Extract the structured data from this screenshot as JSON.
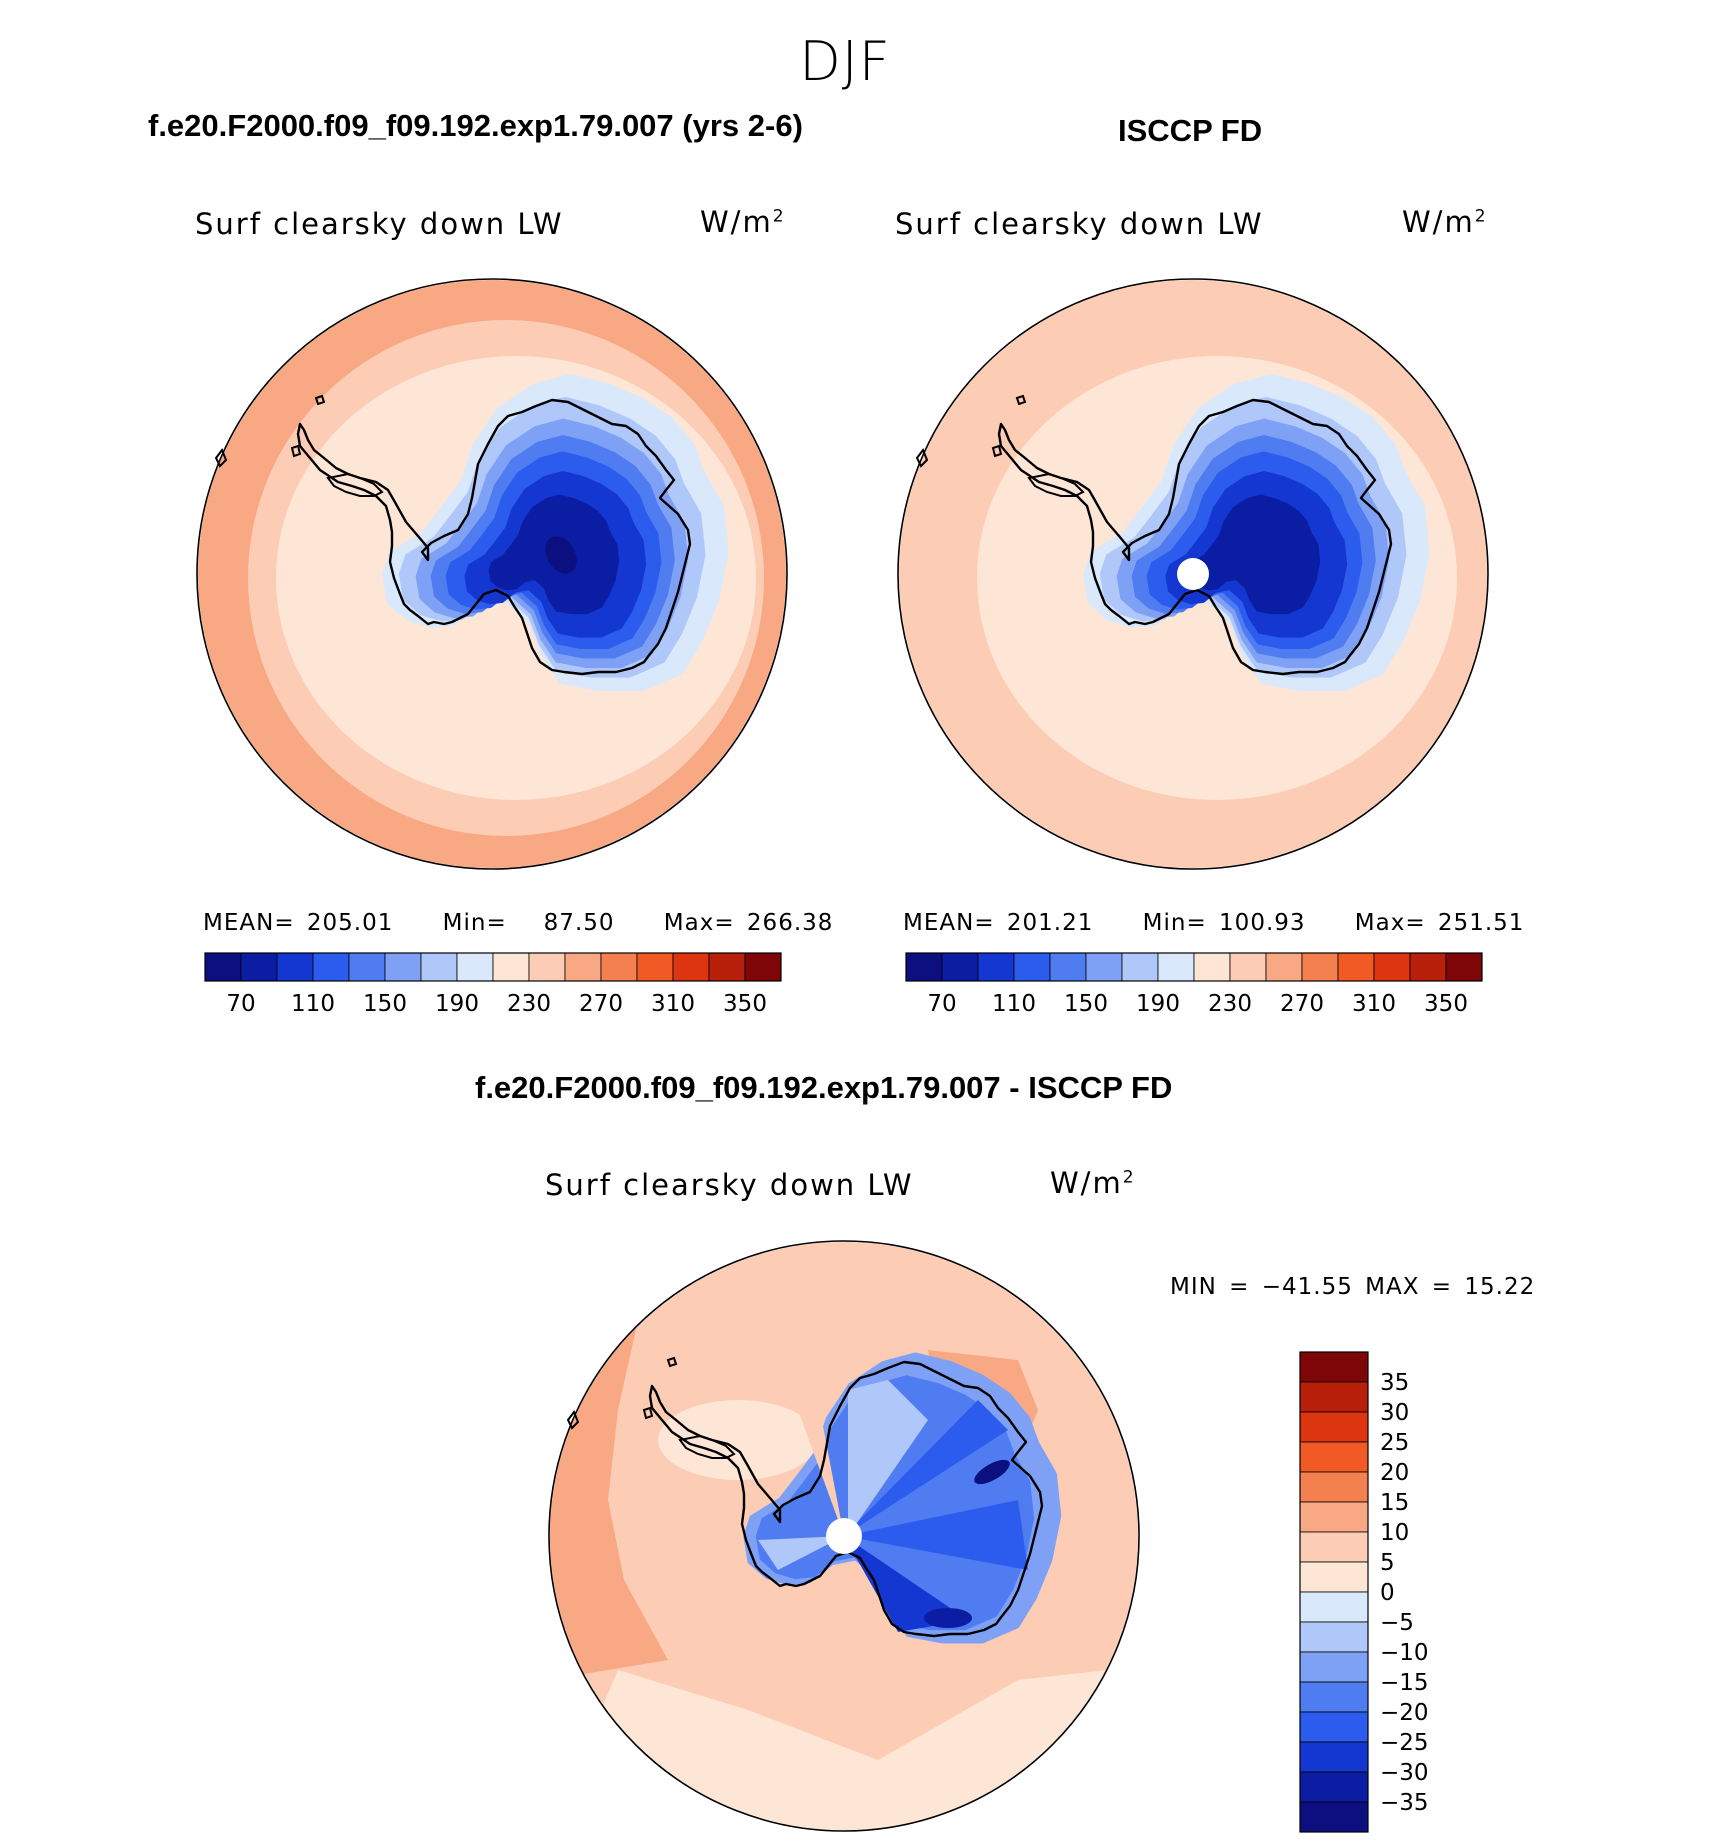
{
  "figure": {
    "season": "DJF",
    "units": "W/m",
    "units_exp": "2",
    "field_label": "Surf clearsky down LW"
  },
  "panels": {
    "model": {
      "title": "f.e20.F2000.f09_f09.192.exp1.79.007 (yrs 2-6)",
      "mean_label": "MEAN=",
      "mean": "205.01",
      "min_label": "Min=",
      "min": "87.50",
      "max_label": "Max=",
      "max": "266.38"
    },
    "obs": {
      "title": "ISCCP FD",
      "mean_label": "MEAN=",
      "mean": "201.21",
      "min_label": "Min=",
      "min": "100.93",
      "max_label": "Max=",
      "max": "251.51"
    },
    "diff": {
      "title": "f.e20.F2000.f09_f09.192.exp1.79.007 - ISCCP FD",
      "minmax_text": "MIN = −41.55 MAX =   15.22"
    }
  },
  "colors": {
    "abs_scale": [
      "#0b0f80",
      "#0b1ea3",
      "#1436d1",
      "#2b5ced",
      "#4f7cf0",
      "#7ea1f6",
      "#b0c8f9",
      "#d9e8fb",
      "#fde6d6",
      "#fcccb5",
      "#f9a884",
      "#f5804f",
      "#f25a25",
      "#dd3510",
      "#b8200c",
      "#7f0606"
    ],
    "diff_scale": [
      "#0b0f80",
      "#0b1ea3",
      "#1436d1",
      "#2b5ced",
      "#4f7cf0",
      "#7ea1f6",
      "#b0c8f9",
      "#d9e8fb",
      "#fde6d6",
      "#fcccb5",
      "#f9a884",
      "#f5804f",
      "#f25a25",
      "#dd3510",
      "#b8200c",
      "#7f0606"
    ],
    "coast": "#000000",
    "pole_mask": "#ffffff"
  },
  "chart_data": [
    {
      "type": "heatmap",
      "name": "model",
      "projection": "south polar stereographic",
      "title": "f.e20.F2000.f09_f09.192.exp1.79.007 (yrs 2-6)",
      "variable": "Surf clearsky down LW",
      "units": "W/m^2",
      "contour_levels": [
        70,
        110,
        150,
        190,
        230,
        270,
        310,
        350
      ],
      "colorbar_ticks": [
        "70",
        "110",
        "150",
        "190",
        "230",
        "270",
        "310",
        "350"
      ],
      "stats": {
        "mean": 205.01,
        "min": 87.5,
        "max": 266.38
      }
    },
    {
      "type": "heatmap",
      "name": "obs",
      "projection": "south polar stereographic",
      "title": "ISCCP FD",
      "variable": "Surf clearsky down LW",
      "units": "W/m^2",
      "contour_levels": [
        70,
        110,
        150,
        190,
        230,
        270,
        310,
        350
      ],
      "colorbar_ticks": [
        "70",
        "110",
        "150",
        "190",
        "230",
        "270",
        "310",
        "350"
      ],
      "stats": {
        "mean": 201.21,
        "min": 100.93,
        "max": 251.51
      }
    },
    {
      "type": "heatmap",
      "name": "difference",
      "projection": "south polar stereographic",
      "title": "f.e20.F2000.f09_f09.192.exp1.79.007 - ISCCP FD",
      "variable": "Surf clearsky down LW",
      "units": "W/m^2",
      "contour_levels": [
        -35,
        -30,
        -25,
        -20,
        -15,
        -10,
        -5,
        0,
        5,
        10,
        15,
        20,
        25,
        30,
        35
      ],
      "colorbar_ticks": [
        "35",
        "30",
        "25",
        "20",
        "15",
        "10",
        "5",
        "0",
        "−5",
        "−10",
        "−15",
        "−20",
        "−25",
        "−30",
        "−35"
      ],
      "stats": {
        "min": -41.55,
        "max": 15.22
      }
    }
  ]
}
